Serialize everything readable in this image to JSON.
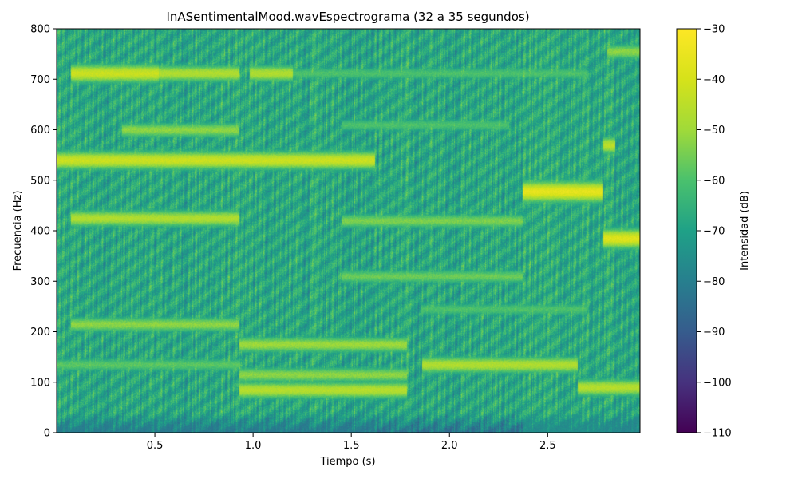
{
  "chart_data": {
    "type": "heatmap",
    "title": "InASentimentalMood.wavEspectrograma (32 a 35 segundos)",
    "xlabel": "Tiempo (s)",
    "ylabel": "Frecuencia (Hz)",
    "colorbar_label": "Intensidad (dB)",
    "colormap": "viridis",
    "xlim": [
      0.0,
      2.97
    ],
    "ylim": [
      0,
      800
    ],
    "clim": [
      -110,
      -30
    ],
    "xticks": [
      0.5,
      1.0,
      1.5,
      2.0,
      2.5
    ],
    "xtick_labels": [
      "0.5",
      "1.0",
      "1.5",
      "2.0",
      "2.5"
    ],
    "yticks": [
      0,
      100,
      200,
      300,
      400,
      500,
      600,
      700,
      800
    ],
    "ytick_labels": [
      "0",
      "100",
      "200",
      "300",
      "400",
      "500",
      "600",
      "700",
      "800"
    ],
    "cticks": [
      -110,
      -100,
      -90,
      -80,
      -70,
      -60,
      -50,
      -40,
      -30
    ],
    "ctick_labels": [
      "−110",
      "−100",
      "−90",
      "−80",
      "−70",
      "−60",
      "−50",
      "−40",
      "−30"
    ],
    "background_db": -68,
    "grid": false,
    "bands": [
      {
        "t0": 0.07,
        "t1": 0.52,
        "f": 712,
        "db": -42
      },
      {
        "t0": 0.52,
        "t1": 0.93,
        "f": 712,
        "db": -47
      },
      {
        "t0": 0.98,
        "t1": 1.2,
        "f": 712,
        "db": -47
      },
      {
        "t0": 1.2,
        "t1": 2.7,
        "f": 712,
        "db": -60
      },
      {
        "t0": 2.8,
        "t1": 2.97,
        "f": 755,
        "db": -52
      },
      {
        "t0": 0.33,
        "t1": 0.93,
        "f": 600,
        "db": -52
      },
      {
        "t0": 1.45,
        "t1": 2.3,
        "f": 610,
        "db": -60
      },
      {
        "t0": 0.0,
        "t1": 1.62,
        "f": 540,
        "db": -42
      },
      {
        "t0": 2.37,
        "t1": 2.78,
        "f": 478,
        "db": -36
      },
      {
        "t0": 2.78,
        "t1": 2.84,
        "f": 570,
        "db": -45
      },
      {
        "t0": 0.07,
        "t1": 0.93,
        "f": 425,
        "db": -47
      },
      {
        "t0": 1.45,
        "t1": 2.37,
        "f": 420,
        "db": -54
      },
      {
        "t0": 2.78,
        "t1": 2.97,
        "f": 385,
        "db": -38
      },
      {
        "t0": 1.45,
        "t1": 2.37,
        "f": 310,
        "db": -56
      },
      {
        "t0": 0.07,
        "t1": 0.93,
        "f": 215,
        "db": -52
      },
      {
        "t0": 1.85,
        "t1": 2.7,
        "f": 245,
        "db": -60
      },
      {
        "t0": 0.93,
        "t1": 1.78,
        "f": 175,
        "db": -50
      },
      {
        "t0": 0.93,
        "t1": 1.78,
        "f": 115,
        "db": -52
      },
      {
        "t0": 0.93,
        "t1": 1.78,
        "f": 85,
        "db": -46
      },
      {
        "t0": 1.86,
        "t1": 2.65,
        "f": 135,
        "db": -47
      },
      {
        "t0": 2.65,
        "t1": 2.97,
        "f": 90,
        "db": -46
      },
      {
        "t0": 0.0,
        "t1": 0.93,
        "f": 135,
        "db": -58
      }
    ]
  }
}
